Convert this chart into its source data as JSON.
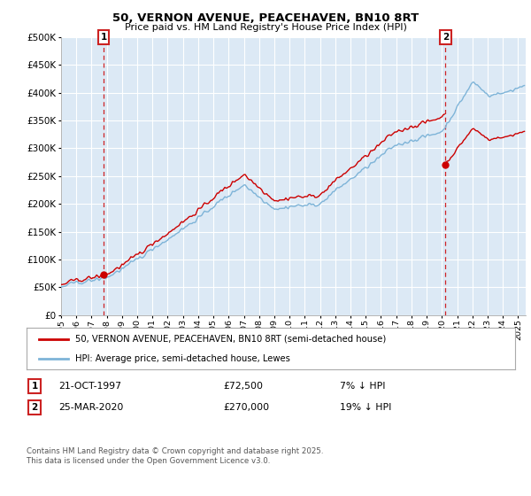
{
  "title": "50, VERNON AVENUE, PEACEHAVEN, BN10 8RT",
  "subtitle": "Price paid vs. HM Land Registry's House Price Index (HPI)",
  "legend_line1": "50, VERNON AVENUE, PEACEHAVEN, BN10 8RT (semi-detached house)",
  "legend_line2": "HPI: Average price, semi-detached house, Lewes",
  "annotation1_date": "21-OCT-1997",
  "annotation1_price": "£72,500",
  "annotation1_hpi": "7% ↓ HPI",
  "annotation2_date": "25-MAR-2020",
  "annotation2_price": "£270,000",
  "annotation2_hpi": "19% ↓ HPI",
  "footnote": "Contains HM Land Registry data © Crown copyright and database right 2025.\nThis data is licensed under the Open Government Licence v3.0.",
  "red_color": "#cc0000",
  "blue_color": "#7eb4d8",
  "plot_bg_color": "#dce9f5",
  "background_color": "#ffffff",
  "grid_color": "#ffffff",
  "ylim": [
    0,
    500000
  ],
  "yticks": [
    0,
    50000,
    100000,
    150000,
    200000,
    250000,
    300000,
    350000,
    400000,
    450000,
    500000
  ],
  "sale1_x": 1997.8,
  "sale1_y": 72500,
  "sale2_x": 2020.23,
  "sale2_y": 270000,
  "xlim_start": 1995.0,
  "xlim_end": 2025.5
}
